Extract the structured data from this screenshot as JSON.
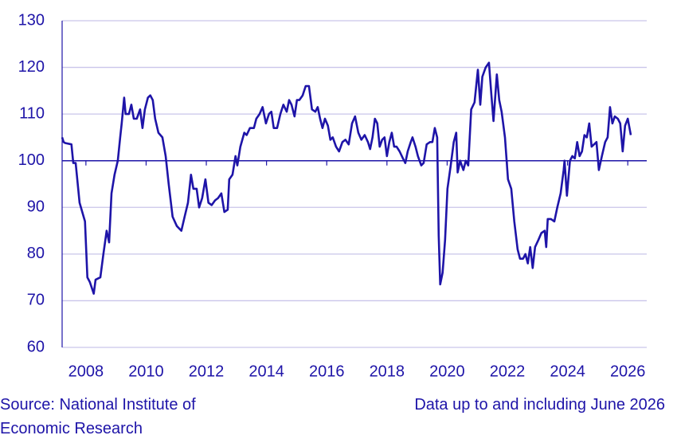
{
  "chart_data": {
    "type": "line",
    "x": [
      2007.21,
      2007.26,
      2007.31,
      2007.52,
      2007.58,
      2007.66,
      2007.79,
      2007.97,
      2008.05,
      2008.13,
      2008.26,
      2008.32,
      2008.48,
      2008.58,
      2008.69,
      2008.77,
      2008.85,
      2008.95,
      2009.06,
      2009.14,
      2009.19,
      2009.27,
      2009.32,
      2009.43,
      2009.51,
      2009.59,
      2009.69,
      2009.8,
      2009.88,
      2009.96,
      2010.06,
      2010.14,
      2010.22,
      2010.3,
      2010.41,
      2010.54,
      2010.65,
      2010.75,
      2010.88,
      2011.02,
      2011.17,
      2011.28,
      2011.39,
      2011.49,
      2011.57,
      2011.68,
      2011.76,
      2011.86,
      2011.97,
      2012.07,
      2012.18,
      2012.29,
      2012.39,
      2012.5,
      2012.6,
      2012.71,
      2012.76,
      2012.87,
      2012.97,
      2013.03,
      2013.13,
      2013.26,
      2013.34,
      2013.45,
      2013.58,
      2013.66,
      2013.77,
      2013.87,
      2013.98,
      2014.08,
      2014.16,
      2014.24,
      2014.35,
      2014.46,
      2014.56,
      2014.67,
      2014.75,
      2014.83,
      2014.93,
      2015.01,
      2015.09,
      2015.2,
      2015.3,
      2015.41,
      2015.51,
      2015.62,
      2015.7,
      2015.78,
      2015.86,
      2015.94,
      2016.04,
      2016.12,
      2016.2,
      2016.31,
      2016.41,
      2016.52,
      2016.62,
      2016.73,
      2016.84,
      2016.94,
      2017.05,
      2017.15,
      2017.26,
      2017.37,
      2017.44,
      2017.52,
      2017.6,
      2017.68,
      2017.76,
      2017.84,
      2017.92,
      2018.0,
      2018.08,
      2018.16,
      2018.24,
      2018.32,
      2018.42,
      2018.53,
      2018.61,
      2018.69,
      2018.79,
      2018.85,
      2018.95,
      2019.03,
      2019.14,
      2019.22,
      2019.32,
      2019.43,
      2019.51,
      2019.59,
      2019.67,
      2019.72,
      2019.77,
      2019.85,
      2019.93,
      2020.01,
      2020.12,
      2020.22,
      2020.3,
      2020.35,
      2020.43,
      2020.54,
      2020.62,
      2020.7,
      2020.8,
      2020.91,
      2021.02,
      2021.1,
      2021.17,
      2021.28,
      2021.39,
      2021.47,
      2021.54,
      2021.65,
      2021.73,
      2021.81,
      2021.92,
      2022.02,
      2022.13,
      2022.23,
      2022.34,
      2022.42,
      2022.52,
      2022.6,
      2022.68,
      2022.76,
      2022.84,
      2022.92,
      2023.03,
      2023.13,
      2023.24,
      2023.29,
      2023.34,
      2023.45,
      2023.56,
      2023.66,
      2023.77,
      2023.87,
      2023.9,
      2023.98,
      2024.08,
      2024.16,
      2024.24,
      2024.32,
      2024.4,
      2024.48,
      2024.56,
      2024.64,
      2024.72,
      2024.8,
      2024.88,
      2024.96,
      2025.04,
      2025.14,
      2025.25,
      2025.33,
      2025.41,
      2025.49,
      2025.57,
      2025.67,
      2025.75,
      2025.83,
      2025.91,
      2026.0,
      2026.1
    ],
    "series": [
      {
        "color": "#1e14a8",
        "values": [
          105,
          104,
          103.8,
          103.5,
          99.5,
          99.5,
          91,
          87,
          75,
          74,
          71.5,
          74.5,
          75,
          80,
          85,
          82.5,
          93,
          97,
          100,
          105,
          108,
          113.5,
          110,
          110,
          112,
          109,
          109,
          111,
          107,
          111,
          113.5,
          114,
          113,
          109,
          106,
          105,
          101,
          95,
          88,
          86,
          85,
          88,
          91,
          97,
          94,
          94,
          90,
          92,
          96,
          91,
          90.5,
          91.5,
          92,
          93,
          89,
          89.5,
          96,
          97,
          101,
          99,
          103,
          106,
          105.5,
          107,
          107,
          109,
          110,
          111.5,
          108,
          110,
          110.5,
          107,
          107,
          110,
          112,
          110.5,
          113,
          112,
          109.5,
          113,
          113,
          114,
          116,
          116,
          111,
          110.5,
          111.5,
          109,
          107,
          109,
          107.5,
          104.5,
          105,
          103,
          102,
          104,
          104.5,
          103.5,
          108,
          109.5,
          106,
          104.5,
          105.5,
          104,
          102.5,
          105,
          109,
          108,
          103,
          104.5,
          105,
          101,
          104,
          106,
          103,
          103,
          102,
          100.5,
          99.5,
          102,
          104,
          105,
          103,
          101,
          99,
          99.5,
          103.5,
          104,
          104,
          107,
          105,
          84,
          73.5,
          76,
          83,
          94,
          99,
          104,
          106,
          97.5,
          100,
          98,
          100,
          99,
          111,
          112.5,
          119.5,
          112,
          118,
          120,
          121,
          114,
          108.5,
          118.5,
          113,
          110.5,
          105,
          96,
          94,
          87,
          81,
          79,
          79,
          80,
          78,
          81.5,
          77,
          81.5,
          83,
          84.5,
          85,
          81.5,
          87.5,
          87.5,
          87,
          90,
          93,
          98,
          100,
          92.5,
          100,
          101,
          100.5,
          104,
          101,
          102,
          105.5,
          105,
          108,
          103,
          103.5,
          104,
          98,
          101,
          104,
          105,
          111.5,
          108,
          109.5,
          109,
          108,
          102,
          107.5,
          109,
          105.5
        ]
      }
    ],
    "xlim": [
      2007.21,
      2026.63
    ],
    "xticks": [
      2008,
      2010,
      2012,
      2014,
      2016,
      2018,
      2020,
      2022,
      2024,
      2026
    ],
    "ylim": [
      60,
      130
    ],
    "yticks": [
      60,
      70,
      80,
      90,
      100,
      110,
      120,
      130
    ],
    "reference_line": 100,
    "grid": true,
    "source": "Source: National Institute of Economic Research",
    "note": "Data up to and including June 2026"
  }
}
